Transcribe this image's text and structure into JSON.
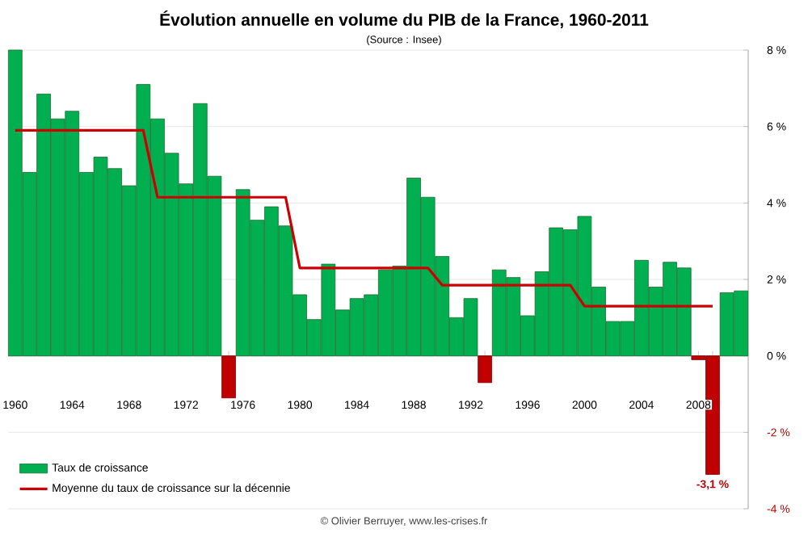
{
  "chart_data": {
    "type": "bar",
    "title": "Évolution annuelle en volume du PIB de la France, 1960-2011",
    "subtitle": "(Source : Insee)",
    "annotations": [
      "© Olivier Berruyer, www.les-crises.fr"
    ],
    "categories": [
      "1960",
      null,
      null,
      null,
      "1964",
      null,
      null,
      null,
      "1968",
      null,
      null,
      null,
      "1972",
      null,
      null,
      null,
      "1976",
      null,
      null,
      null,
      "1980",
      null,
      null,
      null,
      "1984",
      null,
      null,
      null,
      "1988",
      null,
      null,
      null,
      "1992",
      null,
      null,
      null,
      "1996",
      null,
      null,
      null,
      "2000",
      null,
      null,
      null,
      "2004",
      null,
      null,
      null,
      "2008",
      null,
      null,
      null
    ],
    "series": [
      {
        "name": "Taux de croissance",
        "values": [
          8.0,
          4.8,
          6.85,
          6.2,
          6.4,
          4.8,
          5.2,
          4.9,
          4.45,
          7.1,
          6.2,
          5.3,
          4.5,
          6.6,
          4.7,
          -1.1,
          4.35,
          3.55,
          3.9,
          3.4,
          1.6,
          0.95,
          2.4,
          1.2,
          1.5,
          1.6,
          2.25,
          2.35,
          4.65,
          4.15,
          2.6,
          1.0,
          1.5,
          -0.7,
          2.25,
          2.05,
          1.05,
          2.2,
          3.35,
          3.3,
          3.65,
          1.8,
          0.9,
          0.9,
          2.5,
          1.8,
          2.45,
          2.3,
          -0.1,
          -3.1,
          1.65,
          1.7
        ],
        "colors": [
          "#00b050",
          "#00b050",
          "#00b050",
          "#00b050",
          "#00b050",
          "#00b050",
          "#00b050",
          "#00b050",
          "#00b050",
          "#00b050",
          "#00b050",
          "#00b050",
          "#00b050",
          "#00b050",
          "#00b050",
          "#c00000",
          "#00b050",
          "#00b050",
          "#00b050",
          "#00b050",
          "#00b050",
          "#00b050",
          "#00b050",
          "#00b050",
          "#00b050",
          "#00b050",
          "#00b050",
          "#00b050",
          "#00b050",
          "#00b050",
          "#00b050",
          "#00b050",
          "#00b050",
          "#c00000",
          "#00b050",
          "#00b050",
          "#00b050",
          "#00b050",
          "#00b050",
          "#00b050",
          "#00b050",
          "#00b050",
          "#00b050",
          "#00b050",
          "#00b050",
          "#00b050",
          "#00b050",
          "#00b050",
          "#c00000",
          "#c00000",
          "#00b050",
          "#00b050"
        ],
        "value_labels": [
          null,
          null,
          null,
          null,
          null,
          null,
          null,
          null,
          null,
          null,
          null,
          null,
          null,
          null,
          null,
          null,
          null,
          null,
          null,
          null,
          null,
          null,
          null,
          null,
          null,
          null,
          null,
          null,
          null,
          null,
          null,
          null,
          null,
          null,
          null,
          null,
          null,
          null,
          null,
          null,
          null,
          null,
          null,
          null,
          null,
          null,
          null,
          null,
          null,
          "-3,1 %",
          null,
          null
        ]
      },
      {
        "name": "Moyenne du taux de croissance sur la décennie",
        "type": "line",
        "color": "#cc0000",
        "values": [
          5.9,
          5.9,
          5.9,
          5.9,
          5.9,
          5.9,
          5.9,
          5.9,
          5.9,
          5.9,
          4.15,
          4.15,
          4.15,
          4.15,
          4.15,
          4.15,
          4.15,
          4.15,
          4.15,
          4.15,
          2.3,
          2.3,
          2.3,
          2.3,
          2.3,
          2.3,
          2.3,
          2.3,
          2.3,
          2.3,
          1.85,
          1.85,
          1.85,
          1.85,
          1.85,
          1.85,
          1.85,
          1.85,
          1.85,
          1.85,
          1.3,
          1.3,
          1.3,
          1.3,
          1.3,
          1.3,
          1.3,
          1.3,
          1.3,
          1.3,
          null,
          null
        ]
      }
    ],
    "ylim": [
      -4,
      8
    ],
    "yticks": [
      {
        "value": -4,
        "label": "-4 %"
      },
      {
        "value": -2,
        "label": "-2 %"
      },
      {
        "value": 0,
        "label": "0 %"
      },
      {
        "value": 2,
        "label": "2 %"
      },
      {
        "value": 4,
        "label": "4 %"
      },
      {
        "value": 6,
        "label": "6 %"
      },
      {
        "value": 8,
        "label": "8 %"
      }
    ],
    "grid": "y",
    "legend": "bottom left",
    "marker": "none",
    "line_style": "solid"
  }
}
